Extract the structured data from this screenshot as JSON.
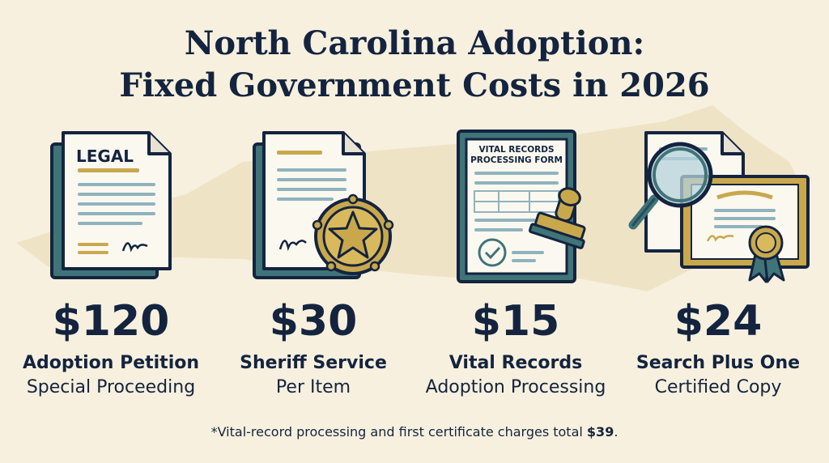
{
  "title": {
    "line1": "North Carolina Adoption:",
    "line2": "Fixed Government Costs in 2026"
  },
  "costs": [
    {
      "amount": "$120",
      "label": "Adoption Petition",
      "sublabel": "Special Proceeding",
      "icon": "legal-document-icon",
      "icon_text": "LEGAL"
    },
    {
      "amount": "$30",
      "label": "Sheriff Service",
      "sublabel": "Per Item",
      "icon": "sheriff-badge-document-icon"
    },
    {
      "amount": "$15",
      "label": "Vital Records",
      "sublabel": "Adoption Processing",
      "icon": "vital-records-form-stamp-icon",
      "icon_text_line1": "VITAL RECORDS",
      "icon_text_line2": "PROCESSING FORM"
    },
    {
      "amount": "$24",
      "label": "Search Plus One",
      "sublabel": "Certified Copy",
      "icon": "magnifier-certificate-icon"
    }
  ],
  "footnote": {
    "text": "*Vital-record processing and first certificate charges total ",
    "total": "$39",
    "end": "."
  },
  "colors": {
    "background": "#f7f0de",
    "map": "#efe3c6",
    "navy": "#14243f",
    "teal": "#3f7478",
    "gold": "#c9a84c"
  }
}
